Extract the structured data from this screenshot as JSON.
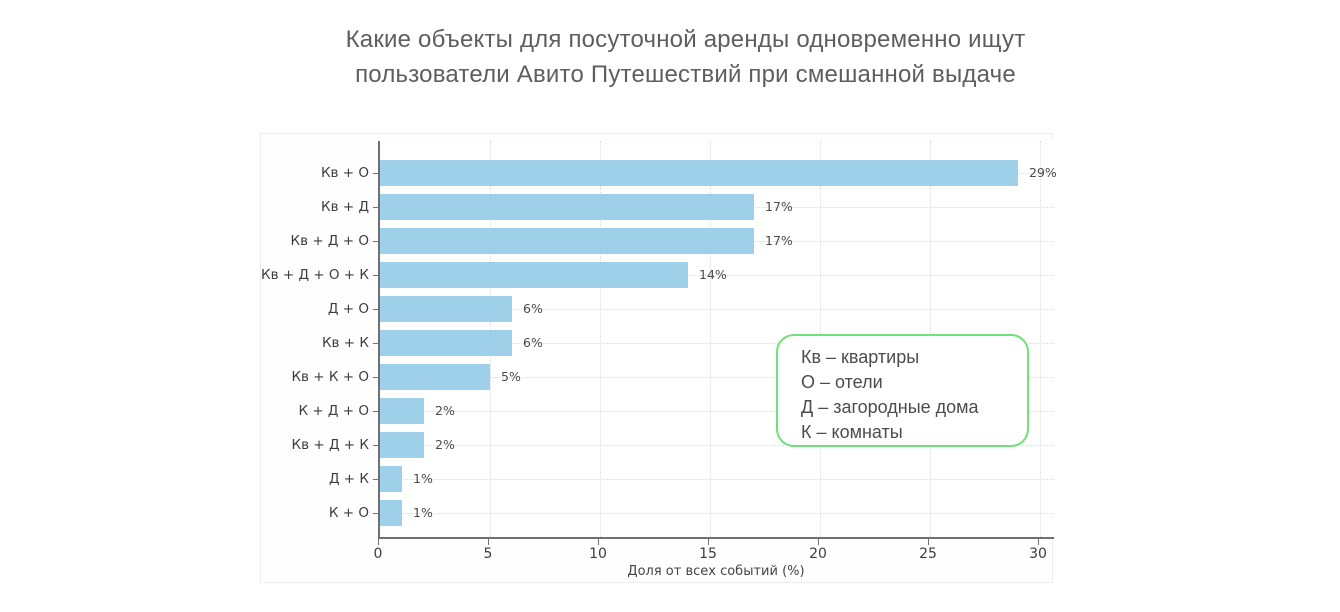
{
  "title": {
    "line1": "Какие объекты для посуточной аренды одновременно ищут",
    "line2": "пользователи Авито Путешествий при смешанной выдаче"
  },
  "chart_data": {
    "type": "bar",
    "orientation": "horizontal",
    "title": "Какие объекты для посуточной аренды одновременно ищут пользователи Авито Путешествий при смешанной выдаче",
    "categories": [
      "Кв + О",
      "Кв + Д",
      "Кв + Д + О",
      "Кв + Д + О + К",
      "Д + О",
      "Кв + К",
      "Кв + К + О",
      "К + Д + О",
      "Кв + Д + К",
      "Д + К",
      "К + О"
    ],
    "values": [
      29,
      17,
      17,
      14,
      6,
      6,
      5,
      2,
      2,
      1,
      1
    ],
    "value_labels": [
      "29%",
      "17%",
      "17%",
      "14%",
      "6%",
      "6%",
      "5%",
      "2%",
      "2%",
      "1%",
      "1%"
    ],
    "xlabel": "Доля от всех событий (%)",
    "ylabel": "",
    "xticks": [
      0,
      5,
      10,
      15,
      20,
      25,
      30
    ],
    "xlim": [
      0,
      30.7
    ],
    "grid": "dotted, both axes",
    "legend_position": "inside right-middle",
    "bar_color": "#9ed0e9"
  },
  "legend": {
    "items": [
      "Кв – квартиры",
      "О – отели",
      "Д – загородные дома",
      "К – комнаты"
    ],
    "border_color": "#71e07a"
  },
  "colors": {
    "background": "#ffffff",
    "bar": "#9ed0e9",
    "spine": "#707070",
    "grid": "#dcdcdc",
    "title_text": "#5e5e5e",
    "tick_text": "#3d3d3d",
    "legend_border": "#71e07a",
    "legend_text": "#4c4c4c"
  }
}
